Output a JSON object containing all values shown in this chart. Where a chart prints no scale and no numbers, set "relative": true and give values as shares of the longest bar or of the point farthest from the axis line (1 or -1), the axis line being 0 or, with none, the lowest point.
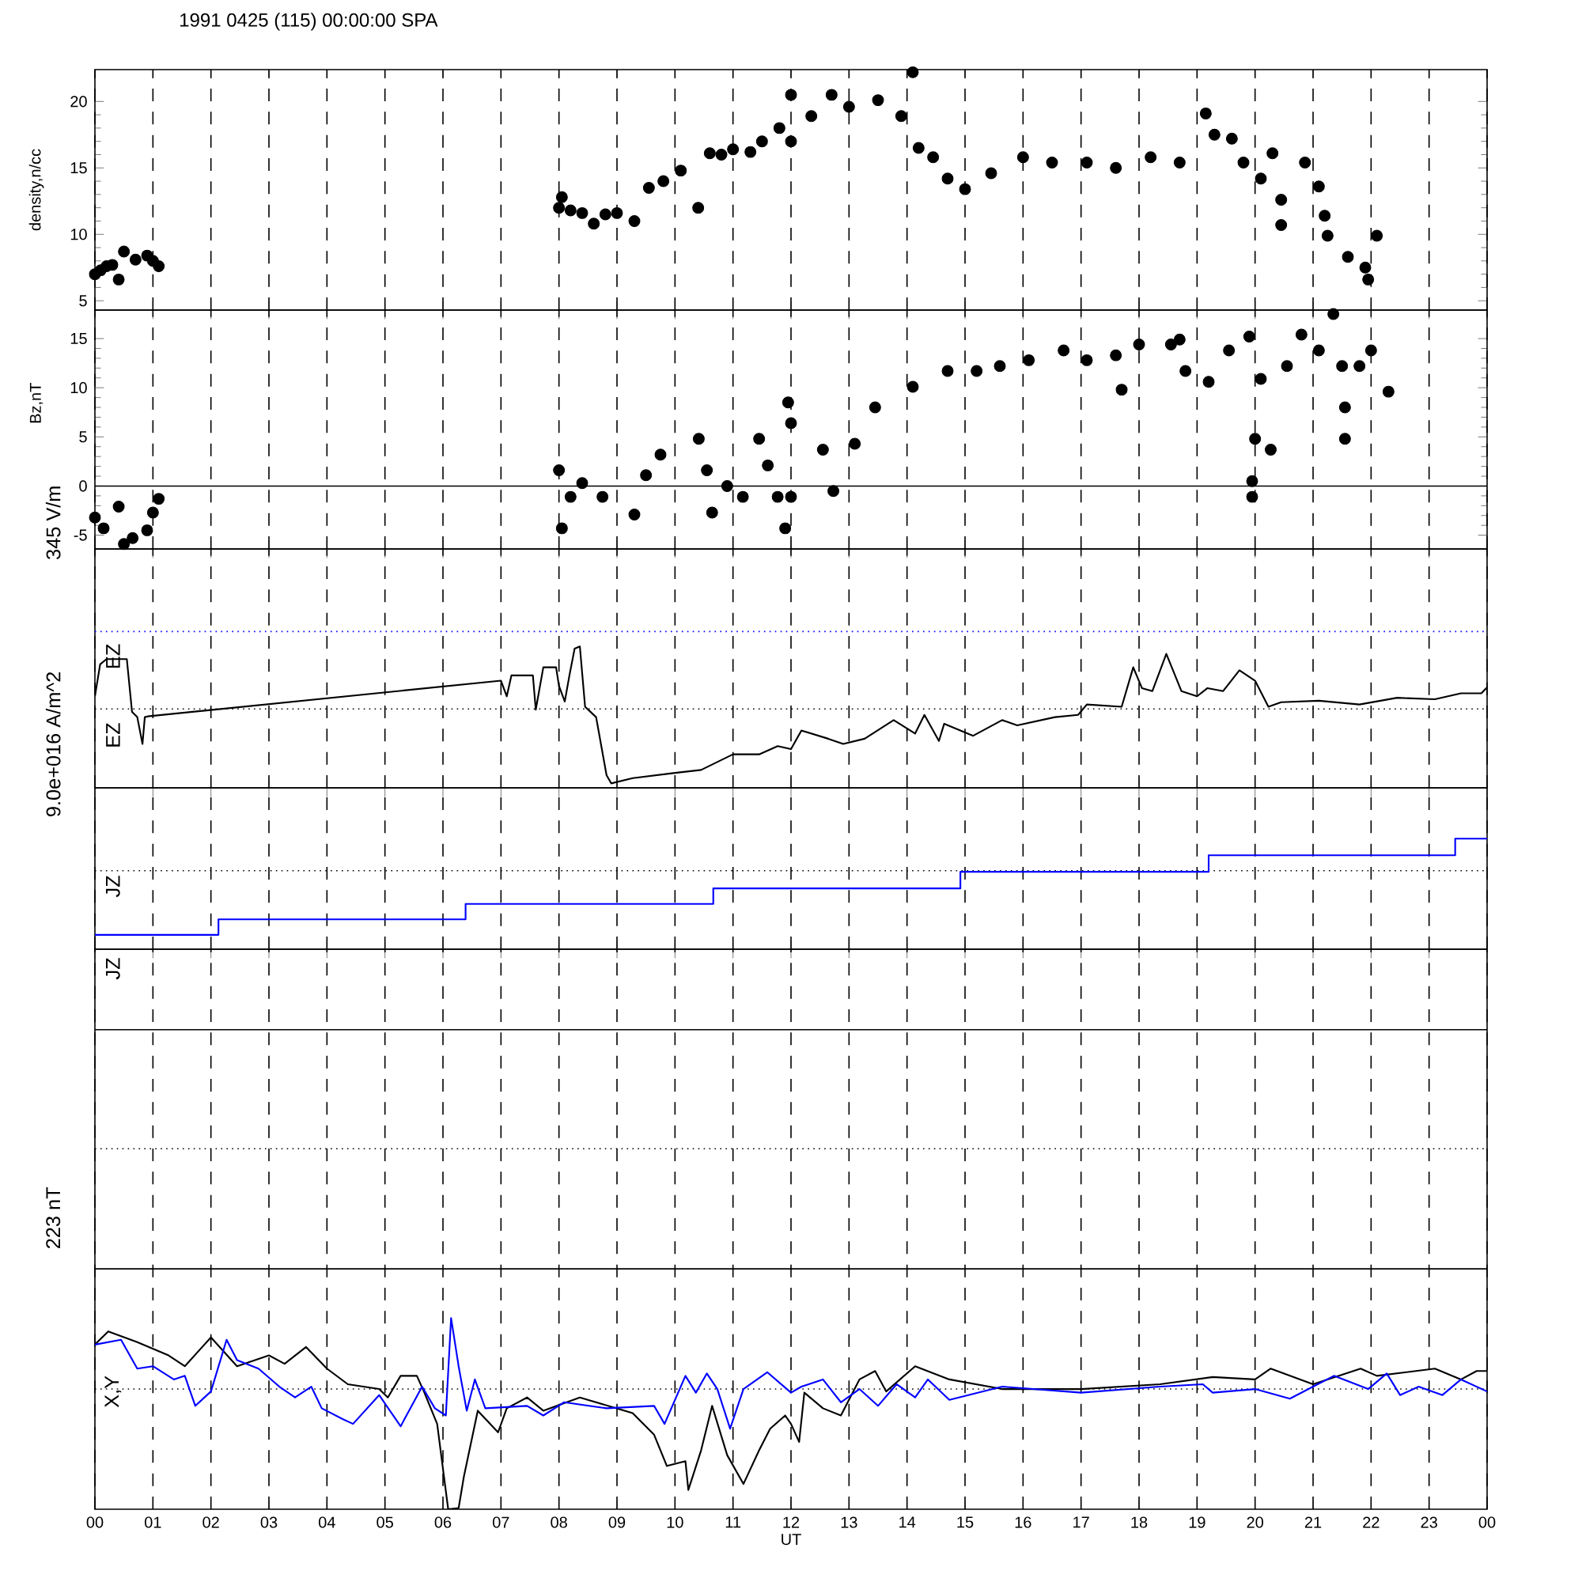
{
  "chart_data": [
    {
      "type": "scatter",
      "title": "1991 0425 (115) 00:00:00 SPA",
      "ylabel": "density,n/cc",
      "marker": "circle",
      "grid": "x",
      "tick_labels": "y",
      "xlim": [
        0,
        24
      ],
      "xticks": [
        {
          "value": 0,
          "label": null
        },
        {
          "value": 1,
          "label": null
        },
        {
          "value": 2,
          "label": null
        },
        {
          "value": 3,
          "label": null
        },
        {
          "value": 4,
          "label": null
        },
        {
          "value": 5,
          "label": null
        },
        {
          "value": 6,
          "label": null
        },
        {
          "value": 7,
          "label": null
        },
        {
          "value": 8,
          "label": null
        },
        {
          "value": 9,
          "label": null
        },
        {
          "value": 10,
          "label": null
        },
        {
          "value": 11,
          "label": null
        },
        {
          "value": 12,
          "label": null
        },
        {
          "value": 13,
          "label": null
        },
        {
          "value": 14,
          "label": null
        },
        {
          "value": 15,
          "label": null
        },
        {
          "value": 16,
          "label": null
        },
        {
          "value": 17,
          "label": null
        },
        {
          "value": 18,
          "label": null
        },
        {
          "value": 19,
          "label": null
        },
        {
          "value": 20,
          "label": null
        },
        {
          "value": 21,
          "label": null
        },
        {
          "value": 22,
          "label": null
        },
        {
          "value": 23,
          "label": null
        },
        {
          "value": 24,
          "label": null
        }
      ],
      "ylim": [
        4.3,
        22.4
      ],
      "yticks": [
        5,
        10,
        15,
        20
      ],
      "series": [
        {
          "color": "#000000",
          "x": [
            0.0,
            0.1,
            0.2,
            0.3,
            0.41,
            0.5,
            0.7,
            0.9,
            1.0,
            1.1,
            8.0,
            8.05,
            8.2,
            8.4,
            8.6,
            8.8,
            9.0,
            9.3,
            9.55,
            9.8,
            10.1,
            10.4,
            10.6,
            10.8,
            11.0,
            11.3,
            11.5,
            11.8,
            12.0,
            12.0,
            12.35,
            12.7,
            13.0,
            13.5,
            13.9,
            14.1,
            14.2,
            14.45,
            14.7,
            15.0,
            15.45,
            16.0,
            16.5,
            17.1,
            17.6,
            18.2,
            18.7,
            19.15,
            19.3,
            19.6,
            19.8,
            20.1,
            20.3,
            20.45,
            20.45,
            20.86,
            21.1,
            21.2,
            21.25,
            21.6,
            21.9,
            21.95,
            22.1
          ],
          "values": [
            7.0,
            7.3,
            7.6,
            7.7,
            6.6,
            8.7,
            8.1,
            8.4,
            8.0,
            7.6,
            12.0,
            12.8,
            11.8,
            11.6,
            10.8,
            11.5,
            11.6,
            11.0,
            13.5,
            14.0,
            14.8,
            12.0,
            16.1,
            16.0,
            16.4,
            16.2,
            17.0,
            18.0,
            20.5,
            17.0,
            18.9,
            20.5,
            19.6,
            20.1,
            18.9,
            22.2,
            16.5,
            15.8,
            14.2,
            13.4,
            14.6,
            15.8,
            15.4,
            15.4,
            15.0,
            15.8,
            15.4,
            19.1,
            17.5,
            17.2,
            15.4,
            14.2,
            16.1,
            12.6,
            10.7,
            15.4,
            13.6,
            11.4,
            9.9,
            8.3,
            7.5,
            6.6,
            9.9
          ]
        }
      ]
    },
    {
      "type": "scatter",
      "ylabel": "Bz,nT",
      "marker": "circle",
      "grid": "x",
      "tick_labels": "y",
      "xlim": [
        0,
        24
      ],
      "xticks": [
        {
          "value": 0,
          "label": null
        },
        {
          "value": 1,
          "label": null
        },
        {
          "value": 2,
          "label": null
        },
        {
          "value": 3,
          "label": null
        },
        {
          "value": 4,
          "label": null
        },
        {
          "value": 5,
          "label": null
        },
        {
          "value": 6,
          "label": null
        },
        {
          "value": 7,
          "label": null
        },
        {
          "value": 8,
          "label": null
        },
        {
          "value": 9,
          "label": null
        },
        {
          "value": 10,
          "label": null
        },
        {
          "value": 11,
          "label": null
        },
        {
          "value": 12,
          "label": null
        },
        {
          "value": 13,
          "label": null
        },
        {
          "value": 14,
          "label": null
        },
        {
          "value": 15,
          "label": null
        },
        {
          "value": 16,
          "label": null
        },
        {
          "value": 17,
          "label": null
        },
        {
          "value": 18,
          "label": null
        },
        {
          "value": 19,
          "label": null
        },
        {
          "value": 20,
          "label": null
        },
        {
          "value": 21,
          "label": null
        },
        {
          "value": 22,
          "label": null
        },
        {
          "value": 23,
          "label": null
        },
        {
          "value": 24,
          "label": null
        }
      ],
      "ylim": [
        -6.4,
        17.9
      ],
      "yticks": [
        -5,
        0,
        5,
        10,
        15
      ],
      "ref_lines": [
        {
          "axis": "y",
          "value": 0,
          "line_style": "solid"
        }
      ],
      "series": [
        {
          "color": "#000000",
          "x": [
            0.0,
            0.15,
            0.41,
            0.5,
            0.65,
            0.9,
            1.0,
            1.1,
            8.0,
            8.05,
            8.2,
            8.4,
            8.75,
            9.3,
            9.5,
            9.75,
            10.41,
            10.55,
            10.64,
            10.9,
            11.17,
            11.45,
            11.6,
            11.77,
            11.9,
            11.95,
            12.0,
            12.0,
            12.55,
            12.73,
            13.1,
            13.45,
            14.1,
            14.7,
            15.2,
            15.6,
            16.1,
            16.7,
            17.1,
            17.6,
            17.7,
            18.0,
            18.55,
            18.7,
            18.8,
            19.2,
            19.55,
            19.9,
            19.95,
            19.95,
            20.0,
            20.1,
            20.27,
            20.55,
            20.8,
            21.1,
            21.35,
            21.5,
            21.55,
            21.55,
            21.8,
            22.0,
            22.3
          ],
          "values": [
            -3.2,
            -4.3,
            -2.1,
            -5.9,
            -5.3,
            -4.5,
            -2.7,
            -1.3,
            1.6,
            -4.3,
            -1.1,
            0.3,
            -1.1,
            -2.9,
            1.1,
            3.2,
            4.8,
            1.6,
            -2.7,
            0.0,
            -1.1,
            4.8,
            2.1,
            -1.1,
            -4.3,
            8.5,
            6.4,
            -1.1,
            3.7,
            -0.5,
            4.3,
            8.0,
            10.1,
            11.7,
            11.7,
            12.2,
            12.8,
            13.8,
            12.8,
            13.3,
            9.8,
            14.4,
            14.4,
            14.9,
            11.7,
            10.6,
            13.8,
            15.2,
            -1.1,
            0.5,
            4.8,
            10.9,
            3.7,
            12.2,
            15.4,
            13.8,
            17.5,
            12.2,
            8.0,
            4.8,
            12.2,
            13.8,
            9.6
          ]
        }
      ]
    },
    {
      "type": "line",
      "relative": true,
      "ylabel": "345 V/m",
      "annotations": [
        "EZ",
        "EZ"
      ],
      "grid": "x",
      "tick_labels": false,
      "line_style": "solid",
      "xlim": [
        0,
        24
      ],
      "xticks": [
        {
          "value": 0,
          "label": null
        },
        {
          "value": 1,
          "label": null
        },
        {
          "value": 2,
          "label": null
        },
        {
          "value": 3,
          "label": null
        },
        {
          "value": 4,
          "label": null
        },
        {
          "value": 5,
          "label": null
        },
        {
          "value": 6,
          "label": null
        },
        {
          "value": 7,
          "label": null
        },
        {
          "value": 8,
          "label": null
        },
        {
          "value": 9,
          "label": null
        },
        {
          "value": 10,
          "label": null
        },
        {
          "value": 11,
          "label": null
        },
        {
          "value": 12,
          "label": null
        },
        {
          "value": 13,
          "label": null
        },
        {
          "value": 14,
          "label": null
        },
        {
          "value": 15,
          "label": null
        },
        {
          "value": 16,
          "label": null
        },
        {
          "value": 17,
          "label": null
        },
        {
          "value": 18,
          "label": null
        },
        {
          "value": 19,
          "label": null
        },
        {
          "value": 20,
          "label": null
        },
        {
          "value": 21,
          "label": null
        },
        {
          "value": 22,
          "label": null
        },
        {
          "value": 23,
          "label": null
        },
        {
          "value": 24,
          "label": null
        }
      ],
      "ref_lines": [
        {
          "axis": "y",
          "value": 0,
          "line_style": "dotted"
        },
        {
          "axis": "y",
          "value": 1.04,
          "line_style": "dotted",
          "color": "#0000ff"
        }
      ],
      "series": [
        {
          "color": "#000000",
          "x": [
            0.0,
            0.09,
            0.2,
            0.55,
            0.64,
            0.73,
            0.82,
            0.86,
            0.91,
            7.0,
            7.1,
            7.18,
            7.55,
            7.6,
            7.73,
            7.95,
            8.0,
            8.1,
            8.18,
            8.27,
            8.36,
            8.45,
            8.64,
            8.82,
            8.9,
            9.27,
            10.0,
            10.45,
            11.0,
            11.45,
            11.77,
            12.0,
            12.18,
            12.64,
            12.9,
            13.27,
            13.77,
            14.14,
            14.3,
            14.55,
            14.64,
            15.14,
            15.64,
            15.9,
            16.55,
            16.95,
            17.1,
            17.7,
            17.9,
            18.05,
            18.23,
            18.47,
            18.73,
            19.0,
            19.18,
            19.45,
            19.73,
            20.0,
            20.23,
            20.45,
            21.1,
            21.8,
            22.45,
            23.1,
            23.55,
            23.9,
            24.0
          ],
          "values": [
            0.17,
            0.6,
            0.67,
            0.67,
            -0.04,
            -0.11,
            -0.47,
            -0.11,
            -0.1,
            0.38,
            0.17,
            0.45,
            0.45,
            -0.01,
            0.56,
            0.56,
            0.31,
            0.1,
            0.45,
            0.81,
            0.84,
            0.03,
            -0.11,
            -0.89,
            -1.0,
            -0.93,
            -0.86,
            -0.82,
            -0.61,
            -0.61,
            -0.5,
            -0.54,
            -0.29,
            -0.4,
            -0.47,
            -0.4,
            -0.15,
            -0.33,
            -0.08,
            -0.43,
            -0.2,
            -0.36,
            -0.15,
            -0.22,
            -0.11,
            -0.08,
            0.06,
            0.03,
            0.56,
            0.28,
            0.24,
            0.74,
            0.24,
            0.17,
            0.28,
            0.24,
            0.52,
            0.38,
            0.03,
            0.09,
            0.11,
            0.06,
            0.15,
            0.13,
            0.21,
            0.21,
            0.29
          ]
        }
      ]
    },
    {
      "type": "step",
      "relative": true,
      "ylabel": "9.0e+016 A/m^2",
      "annotations": [
        "JZ",
        "JZ"
      ],
      "grid": "x",
      "tick_labels": false,
      "xlim": [
        0,
        24
      ],
      "xticks": [
        {
          "value": 0,
          "label": null
        },
        {
          "value": 1,
          "label": null
        },
        {
          "value": 2,
          "label": null
        },
        {
          "value": 3,
          "label": null
        },
        {
          "value": 4,
          "label": null
        },
        {
          "value": 5,
          "label": null
        },
        {
          "value": 6,
          "label": null
        },
        {
          "value": 7,
          "label": null
        },
        {
          "value": 8,
          "label": null
        },
        {
          "value": 9,
          "label": null
        },
        {
          "value": 10,
          "label": null
        },
        {
          "value": 11,
          "label": null
        },
        {
          "value": 12,
          "label": null
        },
        {
          "value": 13,
          "label": null
        },
        {
          "value": 14,
          "label": null
        },
        {
          "value": 15,
          "label": null
        },
        {
          "value": 16,
          "label": null
        },
        {
          "value": 17,
          "label": null
        },
        {
          "value": 18,
          "label": null
        },
        {
          "value": 19,
          "label": null
        },
        {
          "value": 20,
          "label": null
        },
        {
          "value": 21,
          "label": null
        },
        {
          "value": 22,
          "label": null
        },
        {
          "value": 23,
          "label": null
        },
        {
          "value": 24,
          "label": null
        }
      ],
      "ref_lines": [
        {
          "axis": "y",
          "value": 0.71,
          "line_style": "dotted"
        }
      ],
      "series": [
        {
          "color": "#0000ff",
          "x": [
            0,
            2.13,
            6.39,
            10.66,
            14.92,
            19.2,
            23.45,
            24
          ],
          "values": [
            0.13,
            0.27,
            0.41,
            0.55,
            0.7,
            0.85,
            1.0,
            1.0
          ]
        }
      ]
    },
    {
      "type": "line",
      "relative": true,
      "ylabel": "223 nT",
      "xlabel": "UT",
      "annotations": [
        "X,Y"
      ],
      "grid": "x",
      "tick_labels": "x",
      "line_style": "solid",
      "xlim": [
        0,
        24
      ],
      "xticks": [
        {
          "value": 0,
          "label": "00"
        },
        {
          "value": 1,
          "label": "01"
        },
        {
          "value": 2,
          "label": "02"
        },
        {
          "value": 3,
          "label": "03"
        },
        {
          "value": 4,
          "label": "04"
        },
        {
          "value": 5,
          "label": "05"
        },
        {
          "value": 6,
          "label": "06"
        },
        {
          "value": 7,
          "label": "07"
        },
        {
          "value": 8,
          "label": "08"
        },
        {
          "value": 9,
          "label": "09"
        },
        {
          "value": 10,
          "label": "10"
        },
        {
          "value": 11,
          "label": "11"
        },
        {
          "value": 12,
          "label": "12"
        },
        {
          "value": 13,
          "label": "13"
        },
        {
          "value": 14,
          "label": "14"
        },
        {
          "value": 15,
          "label": "15"
        },
        {
          "value": 16,
          "label": "16"
        },
        {
          "value": 17,
          "label": "17"
        },
        {
          "value": 18,
          "label": "18"
        },
        {
          "value": 19,
          "label": "19"
        },
        {
          "value": 20,
          "label": "20"
        },
        {
          "value": 21,
          "label": "21"
        },
        {
          "value": 22,
          "label": "22"
        },
        {
          "value": 23,
          "label": "23"
        },
        {
          "value": 24,
          "label": "00"
        }
      ],
      "ref_lines": [
        {
          "axis": "y",
          "value": 0,
          "line_style": "dotted"
        },
        {
          "axis": "y",
          "value": 1,
          "line_style": "solid"
        },
        {
          "axis": "y",
          "value": 2,
          "line_style": "dotted"
        },
        {
          "axis": "y",
          "value": 2.99,
          "line_style": "solid"
        }
      ],
      "series": [
        {
          "color": "#000000",
          "x": [
            0,
            0.23,
            0.73,
            1.27,
            1.55,
            2.0,
            2.45,
            3.0,
            3.27,
            3.64,
            4.0,
            4.36,
            4.9,
            5.05,
            5.27,
            5.55,
            5.68,
            5.9,
            6.09,
            6.27,
            6.36,
            6.6,
            6.95,
            7.1,
            7.45,
            7.73,
            8.36,
            9.27,
            9.64,
            9.86,
            10.18,
            10.23,
            10.45,
            10.64,
            10.9,
            11.18,
            11.45,
            11.64,
            11.9,
            12.0,
            12.14,
            12.23,
            12.55,
            12.86,
            13.18,
            13.45,
            13.64,
            14.14,
            14.73,
            15.64,
            17.0,
            18.36,
            19.27,
            20.0,
            20.27,
            21.0,
            21.82,
            22.1,
            23.1,
            23.55,
            23.82,
            24.0
          ],
          "values": [
            0.37,
            0.48,
            0.39,
            0.28,
            0.19,
            0.43,
            0.19,
            0.28,
            0.21,
            0.35,
            0.17,
            0.04,
            0.0,
            -0.07,
            0.11,
            0.11,
            -0.03,
            -0.29,
            -1.0,
            -0.99,
            -0.73,
            -0.18,
            -0.36,
            -0.16,
            -0.07,
            -0.18,
            -0.07,
            -0.2,
            -0.38,
            -0.64,
            -0.6,
            -0.84,
            -0.51,
            -0.14,
            -0.55,
            -0.79,
            -0.51,
            -0.33,
            -0.22,
            -0.29,
            -0.44,
            -0.03,
            -0.16,
            -0.22,
            0.08,
            0.15,
            -0.02,
            0.19,
            0.08,
            0.0,
            0.0,
            0.04,
            0.1,
            0.08,
            0.17,
            0.04,
            0.17,
            0.11,
            0.17,
            0.08,
            0.15,
            0.15
          ]
        },
        {
          "color": "#0000ff",
          "x": [
            0,
            0.45,
            0.73,
            1.0,
            1.36,
            1.55,
            1.73,
            2.0,
            2.27,
            2.45,
            2.82,
            3.18,
            3.45,
            3.73,
            3.91,
            4.27,
            4.45,
            4.9,
            5.27,
            5.64,
            5.86,
            6.05,
            6.14,
            6.27,
            6.41,
            6.55,
            6.73,
            7.45,
            7.73,
            8.09,
            8.82,
            9.64,
            9.82,
            10.18,
            10.36,
            10.55,
            10.73,
            10.95,
            11.18,
            11.59,
            12.0,
            12.18,
            12.55,
            12.86,
            13.18,
            13.5,
            13.82,
            14.14,
            14.36,
            14.73,
            15.64,
            17.0,
            18.36,
            19.1,
            19.27,
            20.0,
            20.6,
            21.0,
            21.36,
            21.95,
            22.27,
            22.5,
            22.82,
            23.23,
            23.55,
            24.0
          ],
          "values": [
            0.37,
            0.41,
            0.17,
            0.19,
            0.08,
            0.11,
            -0.14,
            -0.02,
            0.41,
            0.24,
            0.17,
            0.02,
            -0.07,
            0.02,
            -0.16,
            -0.25,
            -0.29,
            -0.05,
            -0.31,
            0.02,
            -0.16,
            -0.22,
            0.59,
            0.19,
            -0.18,
            0.08,
            -0.16,
            -0.14,
            -0.22,
            -0.11,
            -0.16,
            -0.14,
            -0.29,
            0.11,
            -0.03,
            0.13,
            0.0,
            -0.33,
            0.0,
            0.14,
            -0.03,
            0.02,
            0.08,
            -0.11,
            0.0,
            -0.14,
            0.04,
            -0.07,
            0.08,
            -0.09,
            0.02,
            -0.03,
            0.02,
            0.04,
            -0.03,
            0.0,
            -0.08,
            0.02,
            0.11,
            0.0,
            0.13,
            -0.05,
            0.02,
            -0.05,
            0.08,
            -0.02
          ]
        }
      ]
    }
  ]
}
